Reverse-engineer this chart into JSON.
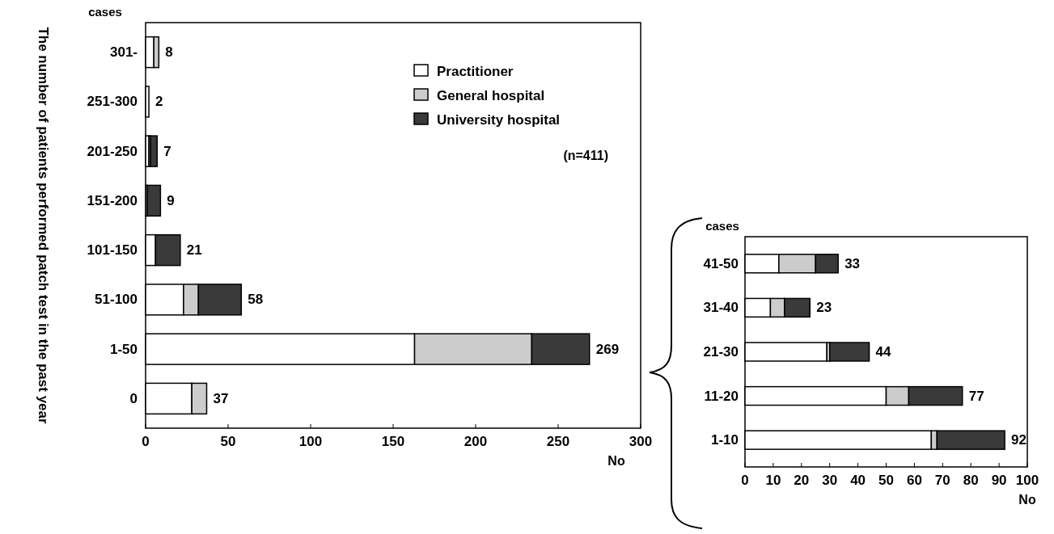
{
  "chart_data": [
    {
      "type": "bar",
      "orientation": "horizontal",
      "stacked": true,
      "ylabel": "The number of  patients performed patch test in the past year",
      "xlabel": "No",
      "annotations": [
        "cases",
        "(n=411)"
      ],
      "categories": [
        "301-",
        "251-300",
        "201-250",
        "151-200",
        "101-150",
        "51-100",
        "1-50",
        "0"
      ],
      "series": [
        {
          "name": "Practitioner",
          "color": "#ffffff",
          "values": [
            5,
            2,
            2,
            1,
            6,
            23,
            163,
            28
          ]
        },
        {
          "name": "General hospital",
          "color": "#cccccc",
          "values": [
            3,
            0,
            1,
            0,
            0,
            9,
            71,
            9
          ]
        },
        {
          "name": "University hospital",
          "color": "#3a3a3a",
          "values": [
            0,
            0,
            4,
            8,
            15,
            26,
            35,
            0
          ]
        }
      ],
      "totals": [
        "8",
        "2",
        "7",
        "9",
        "21",
        "58",
        "269",
        "37"
      ],
      "xlim": [
        0,
        300
      ],
      "xticks": [
        0,
        50,
        100,
        150,
        200,
        250,
        300
      ],
      "legend": "top right"
    },
    {
      "type": "bar",
      "orientation": "horizontal",
      "stacked": true,
      "xlabel": "No",
      "annotations": [
        "cases"
      ],
      "categories": [
        "41-50",
        "31-40",
        "21-30",
        "11-20",
        "1-10"
      ],
      "series": [
        {
          "color": "#ffffff",
          "values": [
            12,
            9,
            29,
            50,
            66
          ]
        },
        {
          "color": "#cccccc",
          "values": [
            13,
            5,
            1,
            8,
            2
          ]
        },
        {
          "color": "#3a3a3a",
          "values": [
            8,
            9,
            14,
            19,
            24
          ]
        }
      ],
      "totals": [
        "33",
        "23",
        "44",
        "77",
        "92"
      ],
      "xlim": [
        0,
        100
      ],
      "xticks": [
        0,
        10,
        20,
        30,
        40,
        50,
        60,
        70,
        80,
        90,
        100
      ]
    }
  ]
}
